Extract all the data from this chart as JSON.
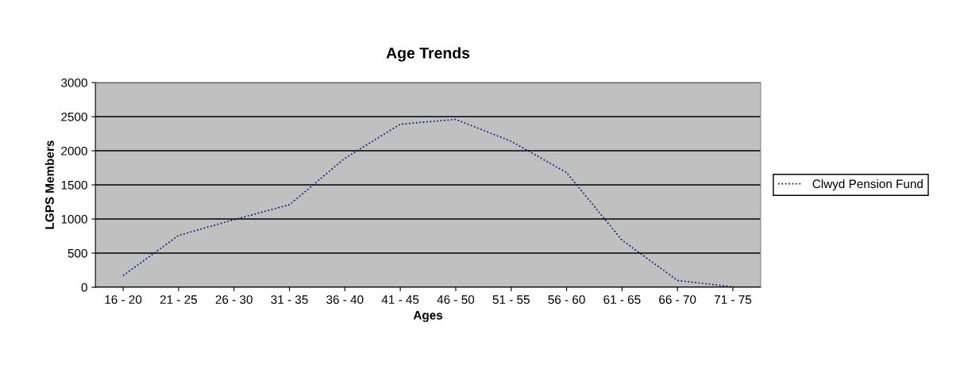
{
  "chart_data": {
    "type": "line",
    "title": "Age Trends",
    "xlabel": "Ages",
    "ylabel": "LGPS Members",
    "categories": [
      "16 - 20",
      "21 - 25",
      "26 - 30",
      "31 - 35",
      "36 - 40",
      "41 - 45",
      "46 - 50",
      "51 - 55",
      "56 - 60",
      "61 - 65",
      "66 - 70",
      "71 - 75"
    ],
    "series": [
      {
        "name": "Clwyd Pension Fund",
        "color": "#000080",
        "values": [
          170,
          760,
          990,
          1210,
          1890,
          2390,
          2460,
          2140,
          1680,
          690,
          100,
          5
        ]
      }
    ],
    "ylim": [
      0,
      3000
    ],
    "yticks": [
      0,
      500,
      1000,
      1500,
      2000,
      2500,
      3000
    ],
    "grid": "y",
    "legend": "right",
    "line_style": "dotted",
    "marker": "none"
  }
}
